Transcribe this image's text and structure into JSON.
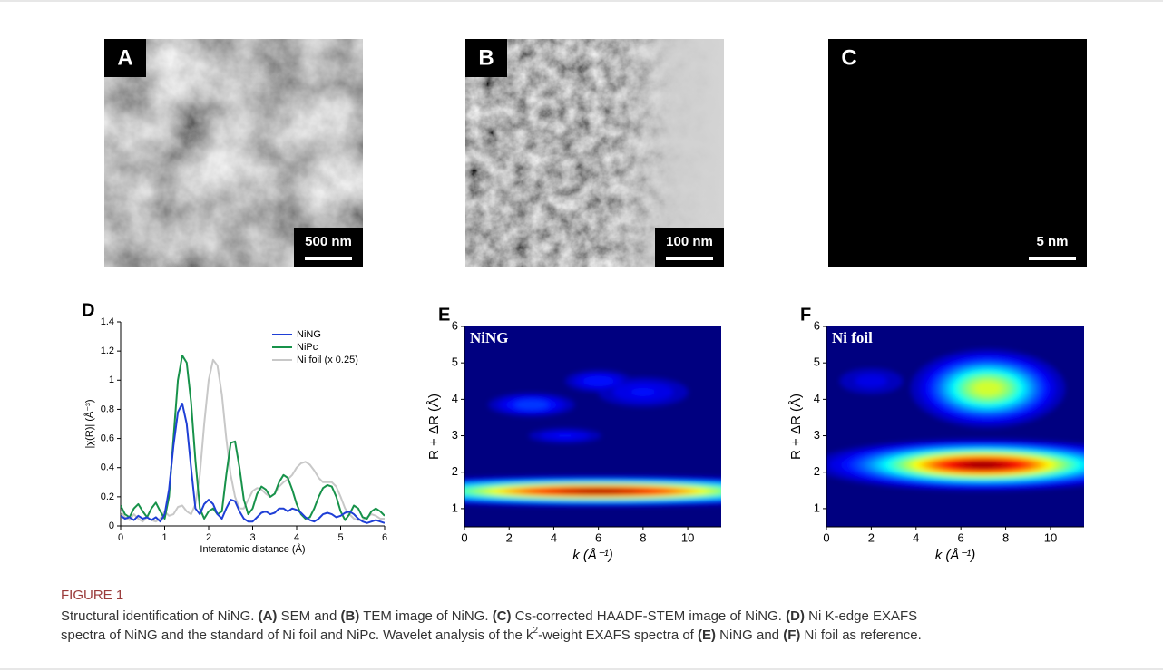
{
  "images": [
    {
      "label": "A",
      "scale_bar": "500 nm"
    },
    {
      "label": "B",
      "scale_bar": "100 nm"
    },
    {
      "label": "C",
      "scale_bar": "5 nm"
    }
  ],
  "chart_data": [
    {
      "type": "line",
      "panel": "D",
      "xlabel": "Interatomic distance (Å)",
      "ylabel": "|χ(R)| (Å⁻³)",
      "xlim": [
        0,
        6
      ],
      "ylim": [
        0,
        1.4
      ],
      "xticks": [
        0,
        1,
        2,
        3,
        4,
        5,
        6
      ],
      "yticks": [
        0,
        0.2,
        0.4,
        0.6,
        0.8,
        1,
        1.2,
        1.4
      ],
      "legend": "upper right",
      "x": [
        0,
        0.1,
        0.2,
        0.3,
        0.4,
        0.5,
        0.6,
        0.7,
        0.8,
        0.9,
        1,
        1.1,
        1.2,
        1.3,
        1.4,
        1.5,
        1.6,
        1.7,
        1.8,
        1.9,
        2,
        2.1,
        2.2,
        2.3,
        2.4,
        2.5,
        2.6,
        2.7,
        2.8,
        2.9,
        3,
        3.1,
        3.2,
        3.3,
        3.4,
        3.5,
        3.6,
        3.7,
        3.8,
        3.9,
        4,
        4.1,
        4.2,
        4.3,
        4.4,
        4.5,
        4.6,
        4.7,
        4.8,
        4.9,
        5,
        5.1,
        5.2,
        5.3,
        5.4,
        5.5,
        5.6,
        5.7,
        5.8,
        5.9,
        6
      ],
      "series": [
        {
          "name": "NiNG",
          "color": "#1f3fd6",
          "values": [
            0.07,
            0.05,
            0.06,
            0.04,
            0.07,
            0.05,
            0.06,
            0.04,
            0.06,
            0.03,
            0.08,
            0.25,
            0.55,
            0.78,
            0.84,
            0.7,
            0.4,
            0.12,
            0.08,
            0.15,
            0.18,
            0.15,
            0.08,
            0.05,
            0.12,
            0.18,
            0.17,
            0.1,
            0.05,
            0.03,
            0.03,
            0.06,
            0.09,
            0.1,
            0.08,
            0.09,
            0.12,
            0.12,
            0.1,
            0.12,
            0.11,
            0.09,
            0.06,
            0.04,
            0.03,
            0.05,
            0.08,
            0.09,
            0.08,
            0.06,
            0.07,
            0.09,
            0.1,
            0.08,
            0.05,
            0.03,
            0.02,
            0.03,
            0.04,
            0.03,
            0.02
          ]
        },
        {
          "name": "NiPc",
          "color": "#17924a",
          "values": [
            0.14,
            0.08,
            0.06,
            0.12,
            0.15,
            0.1,
            0.06,
            0.12,
            0.16,
            0.1,
            0.05,
            0.2,
            0.6,
            1.0,
            1.17,
            1.12,
            0.85,
            0.45,
            0.12,
            0.05,
            0.1,
            0.12,
            0.08,
            0.1,
            0.35,
            0.57,
            0.58,
            0.4,
            0.18,
            0.08,
            0.12,
            0.22,
            0.27,
            0.25,
            0.2,
            0.22,
            0.3,
            0.35,
            0.33,
            0.25,
            0.15,
            0.08,
            0.05,
            0.06,
            0.12,
            0.2,
            0.26,
            0.28,
            0.27,
            0.2,
            0.1,
            0.04,
            0.08,
            0.14,
            0.12,
            0.06,
            0.05,
            0.1,
            0.12,
            0.1,
            0.07
          ]
        },
        {
          "name": "Ni foil (x 0.25)",
          "color": "#c8c8c8",
          "values": [
            0.1,
            0.06,
            0.04,
            0.08,
            0.05,
            0.03,
            0.06,
            0.04,
            0.03,
            0.05,
            0.1,
            0.07,
            0.08,
            0.13,
            0.14,
            0.1,
            0.08,
            0.15,
            0.35,
            0.7,
            1.0,
            1.14,
            1.1,
            0.9,
            0.6,
            0.35,
            0.2,
            0.12,
            0.12,
            0.18,
            0.24,
            0.26,
            0.25,
            0.22,
            0.2,
            0.22,
            0.27,
            0.3,
            0.32,
            0.35,
            0.4,
            0.43,
            0.44,
            0.42,
            0.38,
            0.33,
            0.3,
            0.3,
            0.3,
            0.27,
            0.2,
            0.12,
            0.08,
            0.05,
            0.04,
            0.04,
            0.06,
            0.08,
            0.07,
            0.05,
            0.05
          ]
        }
      ]
    },
    {
      "type": "heatmap",
      "panel": "E",
      "label": "NiNG",
      "xlabel": "k (Å⁻¹)",
      "ylabel": "R + ΔR (Å)",
      "xlim": [
        0,
        11.5
      ],
      "ylim": [
        0.5,
        6
      ],
      "xticks": [
        0,
        2,
        4,
        6,
        8,
        10
      ],
      "yticks": [
        1,
        2,
        3,
        4,
        5,
        6
      ],
      "peaks": [
        {
          "k": 6,
          "r": 1.48,
          "k_width": 5,
          "r_width": 0.18,
          "intensity": 1
        },
        {
          "k": 3,
          "r": 3.85,
          "k_width": 1.2,
          "r_width": 0.2,
          "intensity": 0.22
        },
        {
          "k": 6,
          "r": 4.5,
          "k_width": 1,
          "r_width": 0.2,
          "intensity": 0.18
        },
        {
          "k": 8,
          "r": 4.2,
          "k_width": 1.5,
          "r_width": 0.3,
          "intensity": 0.15
        },
        {
          "k": 4.5,
          "r": 3,
          "k_width": 1.2,
          "r_width": 0.15,
          "intensity": 0.15
        }
      ]
    },
    {
      "type": "heatmap",
      "panel": "F",
      "label": "Ni foil",
      "xlabel": "k (Å⁻¹)",
      "ylabel": "R + ΔR (Å)",
      "xlim": [
        0,
        11.5
      ],
      "ylim": [
        0.5,
        6
      ],
      "xticks": [
        0,
        2,
        4,
        6,
        8,
        10
      ],
      "yticks": [
        1,
        2,
        3,
        4,
        5,
        6
      ],
      "peaks": [
        {
          "k": 7,
          "r": 2.2,
          "k_width": 3.2,
          "r_width": 0.3,
          "intensity": 1
        },
        {
          "k": 7.2,
          "r": 4.3,
          "k_width": 1.6,
          "r_width": 0.5,
          "intensity": 0.62
        },
        {
          "k": 2,
          "r": 4.5,
          "k_width": 1.2,
          "r_width": 0.3,
          "intensity": 0.12
        }
      ]
    }
  ],
  "caption": {
    "heading": "FIGURE 1",
    "lines": [
      [
        {
          "text": "Structural identification of NiNG. "
        },
        {
          "text": "(A)",
          "bold": true
        },
        {
          "text": " SEM and "
        },
        {
          "text": "(B)",
          "bold": true
        },
        {
          "text": " TEM image of NiNG. "
        },
        {
          "text": "(C)",
          "bold": true
        },
        {
          "text": " Cs-corrected HAADF-STEM image of NiNG. "
        },
        {
          "text": "(D)",
          "bold": true
        },
        {
          "text": " Ni K-edge EXAFS"
        }
      ],
      [
        {
          "text": "spectra of NiNG and the standard of Ni foil and NiPc. Wavelet analysis of the k"
        },
        {
          "text": "2",
          "sup": true
        },
        {
          "text": "-weight EXAFS spectra of "
        },
        {
          "text": "(E)",
          "bold": true
        },
        {
          "text": " NiNG and "
        },
        {
          "text": "(F)",
          "bold": true
        },
        {
          "text": " Ni foil as reference."
        }
      ]
    ]
  }
}
